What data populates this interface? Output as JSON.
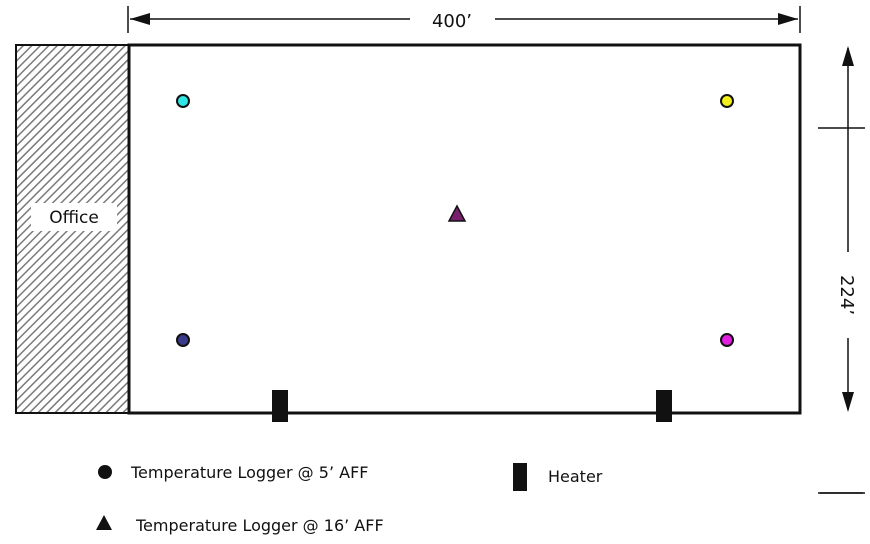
{
  "dimensions": {
    "width_label": "400’",
    "height_label": "224’"
  },
  "office": {
    "label": "Office"
  },
  "loggers": [
    {
      "id": "logger-top-left",
      "type": "circle",
      "color": "#2ee6e6"
    },
    {
      "id": "logger-top-right",
      "type": "circle",
      "color": "#f2ef1a"
    },
    {
      "id": "logger-center",
      "type": "triangle",
      "color": "#7a1f6e"
    },
    {
      "id": "logger-bottom-left",
      "type": "circle",
      "color": "#3a3a8c"
    },
    {
      "id": "logger-bottom-right",
      "type": "circle",
      "color": "#e21ee0"
    }
  ],
  "legend": {
    "logger_5ft": "Temperature Logger @ 5’ AFF",
    "logger_16ft": "Temperature Logger @ 16’ AFF",
    "heater": "Heater"
  },
  "colors": {
    "outline": "#111111",
    "hatch": "#7a7a7a"
  }
}
